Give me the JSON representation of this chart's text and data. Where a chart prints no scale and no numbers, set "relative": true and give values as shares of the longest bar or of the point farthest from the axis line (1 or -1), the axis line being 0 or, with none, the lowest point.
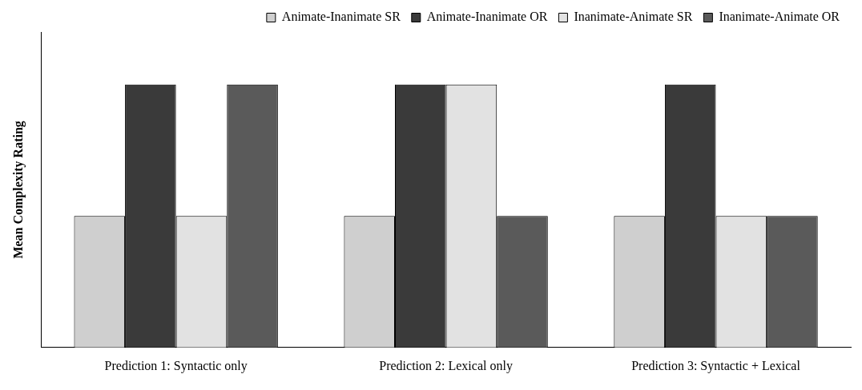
{
  "chart_data": {
    "type": "bar",
    "ylabel": "Mean Complexity Rating",
    "relative": true,
    "legend": "top",
    "grid": false,
    "tick_labels": "x",
    "categories": [
      "Prediction 1: Syntactic only",
      "Prediction 2: Lexical only",
      "Prediction 3: Syntactic + Lexical"
    ],
    "series": [
      {
        "name": "Animate-Inanimate SR",
        "color": "#cfcfcf",
        "values": [
          0.5,
          0.5,
          0.5
        ]
      },
      {
        "name": "Animate-Inanimate OR",
        "color": "#3a3a3a",
        "values": [
          1,
          1,
          1
        ]
      },
      {
        "name": "Inanimate-Animate SR",
        "color": "#e2e2e2",
        "values": [
          0.5,
          1,
          0.5
        ]
      },
      {
        "name": "Inanimate-Animate OR",
        "color": "#5a5a5a",
        "values": [
          1,
          0.5,
          0.5
        ]
      }
    ]
  }
}
